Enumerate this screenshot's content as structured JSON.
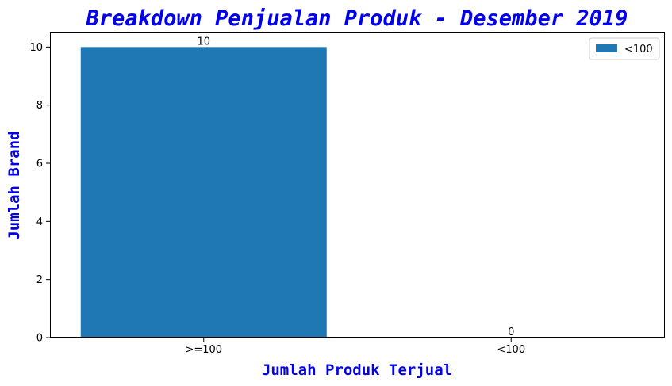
{
  "chart_data": {
    "type": "bar",
    "title": "Breakdown Penjualan Produk - Desember 2019",
    "xlabel": "Jumlah Produk Terjual",
    "ylabel": "Jumlah Brand",
    "categories": [
      ">=100",
      "<100"
    ],
    "series": [
      {
        "name": "<100",
        "values": [
          10,
          0
        ]
      }
    ],
    "data_labels": [
      "10",
      "0"
    ],
    "ylim": [
      0,
      10.5
    ],
    "yticks": [
      0,
      2,
      4,
      6,
      8,
      10
    ],
    "grid": false,
    "legend_position": "top-right",
    "colors": {
      "bar": "#1f77b4",
      "title": "#0000ee",
      "axis_label": "#0000ee"
    }
  }
}
